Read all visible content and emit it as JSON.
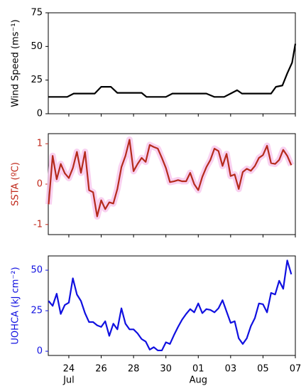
{
  "chart_data": [
    {
      "type": "line",
      "ylabel": "Wind Speed (ms⁻¹)",
      "label_color": "#000000",
      "x": [
        22.73,
        23.9,
        24.3,
        25.0,
        25.6,
        26.0,
        26.6,
        27.0,
        28.5,
        28.8,
        30.0,
        30.4,
        31.5,
        32.5,
        33.0,
        33.6,
        34.0,
        34.4,
        34.7,
        36.2,
        36.5,
        36.8,
        37.2,
        37.5,
        37.8,
        38.0
      ],
      "series": [
        {
          "color": "#000000",
          "values": [
            12.5,
            12.5,
            15,
            15,
            15,
            20,
            20,
            15.5,
            15.5,
            12.5,
            12.5,
            15,
            15,
            15,
            12.5,
            12.5,
            15,
            17.5,
            15,
            15,
            15,
            20,
            21,
            30,
            38,
            52
          ]
        }
      ],
      "xlim": [
        22.73,
        38
      ],
      "ylim": [
        0,
        75
      ],
      "yticks": [
        0,
        25,
        50,
        75
      ]
    },
    {
      "type": "line",
      "ylabel": "SSTA (ºC)",
      "label_color": "#c0281a",
      "glow": "#f7c6ec",
      "x": [
        22.75,
        23,
        23.25,
        23.5,
        23.75,
        24,
        24.25,
        24.5,
        24.75,
        25,
        25.25,
        25.5,
        25.75,
        26,
        26.25,
        26.5,
        26.75,
        27,
        27.25,
        27.5,
        27.75,
        28,
        28.25,
        28.5,
        28.75,
        29,
        29.25,
        29.5,
        29.75,
        30,
        30.25,
        30.5,
        30.75,
        31,
        31.25,
        31.5,
        31.75,
        32,
        32.25,
        32.5,
        32.75,
        33,
        33.25,
        33.5,
        33.75,
        34,
        34.25,
        34.5,
        34.75,
        35,
        35.25,
        35.5,
        35.75,
        36,
        36.25,
        36.5,
        36.75,
        37,
        37.25,
        37.5,
        37.75
      ],
      "series": [
        {
          "color": "#b52a1c",
          "values": [
            -0.5,
            0.7,
            0.12,
            0.5,
            0.27,
            0.15,
            0.4,
            0.8,
            0.28,
            0.8,
            -0.15,
            -0.2,
            -0.8,
            -0.4,
            -0.62,
            -0.45,
            -0.48,
            -0.12,
            0.42,
            0.7,
            1.1,
            0.32,
            0.5,
            0.65,
            0.55,
            0.97,
            0.92,
            0.88,
            0.65,
            0.4,
            0.05,
            0.07,
            0.1,
            0.07,
            0.07,
            0.28,
            0,
            -0.15,
            0.18,
            0.42,
            0.6,
            0.88,
            0.82,
            0.45,
            0.75,
            0.2,
            0.24,
            -0.12,
            0.3,
            0.38,
            0.33,
            0.45,
            0.65,
            0.72,
            0.95,
            0.52,
            0.5,
            0.6,
            0.85,
            0.7,
            0.47
          ]
        }
      ],
      "xlim": [
        22.73,
        38
      ],
      "ylim": [
        -1.25,
        1.25
      ],
      "yticks": [
        -1,
        0,
        1
      ]
    },
    {
      "type": "line",
      "ylabel": "UOHCA (kJ cm⁻²)",
      "label_color": "#1010e0",
      "x": [
        22.75,
        23,
        23.25,
        23.5,
        23.75,
        24,
        24.25,
        24.5,
        24.75,
        25,
        25.25,
        25.5,
        25.75,
        26,
        26.25,
        26.5,
        26.75,
        27,
        27.25,
        27.5,
        27.75,
        28,
        28.25,
        28.5,
        28.75,
        29,
        29.25,
        29.5,
        29.75,
        30,
        30.25,
        30.5,
        30.75,
        31,
        31.25,
        31.5,
        31.75,
        32,
        32.25,
        32.5,
        32.75,
        33,
        33.25,
        33.5,
        33.75,
        34,
        34.25,
        34.5,
        34.75,
        35,
        35.25,
        35.5,
        35.75,
        36,
        36.25,
        36.5,
        36.75,
        37,
        37.25,
        37.5,
        37.75
      ],
      "series": [
        {
          "color": "#1010e0",
          "values": [
            31,
            28,
            35.5,
            23,
            28.5,
            30,
            45,
            35,
            31,
            23.5,
            18,
            18,
            16,
            15,
            18.5,
            9.5,
            17,
            13.5,
            26.5,
            17,
            13.5,
            13.5,
            11,
            7.5,
            6,
            1,
            2.5,
            0.5,
            0.5,
            5.5,
            4.5,
            10,
            15,
            19.5,
            23,
            26,
            24,
            29.5,
            23.5,
            26,
            25.5,
            24,
            26.5,
            31.5,
            24.5,
            17.5,
            18.5,
            8,
            4.5,
            8,
            15.5,
            20.5,
            29.5,
            29,
            24,
            36,
            35,
            43.5,
            38.5,
            56,
            47.5
          ]
        }
      ],
      "xlim": [
        22.73,
        38
      ],
      "ylim": [
        -2.6,
        58.8
      ],
      "yticks": [
        0,
        25,
        50
      ],
      "xticks": [
        24,
        26,
        28,
        30,
        {
          "value": 32,
          "label": "01"
        },
        {
          "value": 34,
          "label": "03"
        },
        {
          "value": 36,
          "label": "05"
        },
        {
          "value": 38,
          "label": "07"
        }
      ],
      "xmonths": [
        {
          "value": 24,
          "label": "Jul"
        },
        {
          "value": 32,
          "label": "Aug"
        }
      ]
    }
  ]
}
